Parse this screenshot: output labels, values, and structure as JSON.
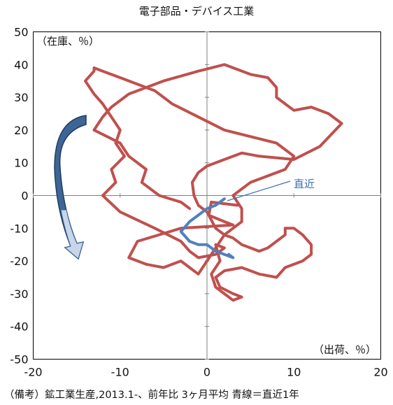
{
  "chart_data": {
    "type": "line",
    "title": "電子部品・デバイス工業",
    "xlabel": "（出荷、％）",
    "ylabel": "（在庫、％）",
    "xlim": [
      -20,
      20
    ],
    "ylim": [
      -50,
      50
    ],
    "x_ticks": [
      -20,
      -10,
      0,
      10,
      20
    ],
    "y_ticks": [
      50,
      40,
      30,
      20,
      10,
      0,
      -10,
      -20,
      -30,
      -40,
      -50
    ],
    "annotation": "直近",
    "series": [
      {
        "color": "#c0504d",
        "x": [
          3.5,
          0.5,
          0.2,
          2,
          3,
          -3,
          -8,
          -9,
          -7,
          -5,
          -4,
          -3,
          -2,
          -1,
          0,
          1,
          2,
          4,
          4,
          3,
          5,
          9,
          10,
          8,
          2,
          -1,
          -4,
          -6,
          -10,
          -12,
          -13,
          -13,
          -14,
          -13,
          -12,
          -11,
          -10,
          -10.5,
          -9.5,
          -11,
          -10.5,
          -12,
          -10,
          -6,
          -3,
          -2,
          -1,
          1,
          2,
          1,
          1.5,
          0.5,
          1,
          3,
          4,
          3,
          1.5,
          1,
          2,
          4,
          5,
          6,
          8,
          9,
          11,
          12,
          12,
          11,
          10,
          9,
          9,
          8,
          7,
          6,
          5,
          4,
          3,
          2,
          1,
          0,
          -1,
          -1.5,
          -1.7,
          -1,
          0,
          2,
          4,
          6,
          10,
          13,
          15.5,
          14,
          12,
          10,
          9,
          8,
          8,
          7,
          5,
          2,
          -1,
          -5,
          -9,
          -11,
          -12,
          -13,
          -10,
          -9,
          -7,
          -7.5,
          -5.5,
          -3,
          -2
        ],
        "y": [
          -3,
          -2,
          -6,
          -8,
          -9,
          -10,
          -14,
          -19,
          -21,
          -22,
          -21,
          -20,
          -22,
          -24,
          -20,
          -16,
          -12,
          -8,
          -4,
          0,
          4,
          8,
          12,
          16,
          20,
          24,
          28,
          32,
          36,
          38,
          39,
          38,
          35,
          31,
          28,
          24,
          20,
          16,
          12,
          8,
          4,
          0,
          -5,
          -10,
          -14,
          -17,
          -19,
          -18,
          -16,
          -15,
          -20,
          -24,
          -28,
          -32,
          -31,
          -30,
          -28,
          -25,
          -23,
          -22,
          -23,
          -24,
          -25,
          -22,
          -20,
          -18,
          -15,
          -12,
          -10,
          -10,
          -12,
          -14,
          -16,
          -17,
          -16,
          -15,
          -13,
          -12,
          -10,
          -5,
          -3,
          0,
          4,
          7,
          9,
          11,
          13,
          12,
          11,
          15,
          22,
          25,
          27,
          26,
          28,
          30,
          33,
          36,
          37,
          40,
          38,
          35,
          31,
          27,
          24,
          20,
          16,
          12,
          8,
          4,
          0,
          -2,
          -4
        ]
      },
      {
        "color": "#4f81bd",
        "x": [
          2,
          1,
          0,
          -1,
          -2,
          -3,
          -2,
          -1,
          0,
          1,
          2,
          3,
          2.5,
          3
        ],
        "y": [
          -1,
          -3,
          -4,
          -6,
          -8,
          -11,
          -14,
          -15,
          -15,
          -17,
          -18,
          -19,
          -18,
          -19
        ]
      }
    ]
  },
  "footer": "（備考）鉱工業生産,2013.1-、前年比 3ヶ月平均 青線＝直近1年"
}
